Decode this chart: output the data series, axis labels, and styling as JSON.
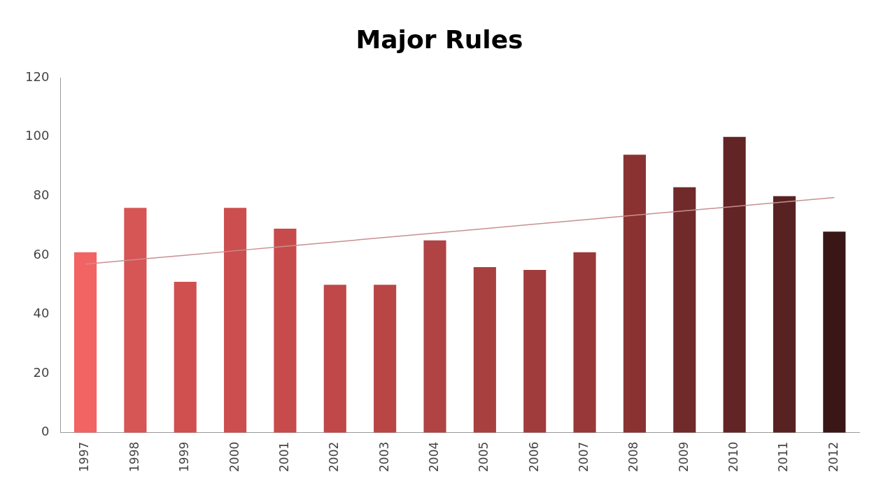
{
  "chart_data": {
    "type": "bar",
    "title": "Major Rules",
    "categories": [
      "1997",
      "1998",
      "1999",
      "2000",
      "2001",
      "2002",
      "2003",
      "2004",
      "2005",
      "2006",
      "2007",
      "2008",
      "2009",
      "2010",
      "2011",
      "2012"
    ],
    "series": [
      {
        "values": [
          61,
          76,
          51,
          76,
          69,
          50,
          50,
          65,
          56,
          55,
          61,
          94,
          83,
          100,
          80,
          68
        ],
        "colors": [
          "#f26363",
          "#d65555",
          "#d05050",
          "#cc4e4e",
          "#c84b4b",
          "#c04848",
          "#b94545",
          "#b04343",
          "#a84040",
          "#a03c3c",
          "#983838",
          "#8a3232",
          "#702a2a",
          "#622424",
          "#582222",
          "#3a1616"
        ]
      },
      {
        "type": "line",
        "values": [
          57,
          58.5,
          60,
          61.5,
          63,
          64.5,
          66,
          67.5,
          69,
          70.5,
          72,
          73.5,
          75,
          76.5,
          78,
          79.5
        ],
        "color": "#c89090",
        "marker": "none"
      }
    ],
    "ylim": [
      0,
      120
    ],
    "yticks": [
      0,
      20,
      40,
      60,
      80,
      100,
      120
    ],
    "grid": false,
    "legend": false
  }
}
